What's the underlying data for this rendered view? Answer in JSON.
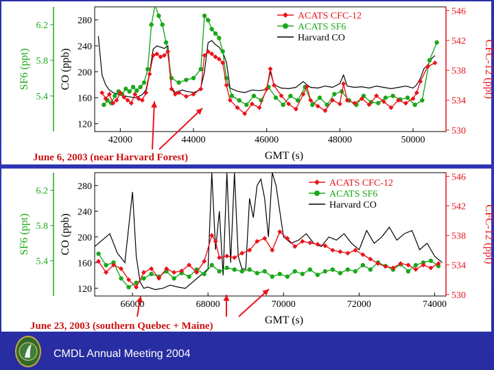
{
  "footer": {
    "text": "CMDL Annual Meeting 2004"
  },
  "colors": {
    "cfc12": "#e8141c",
    "sf6": "#1aa81a",
    "co": "#000000",
    "background": "#2d32b0",
    "panel": "#ffffff"
  },
  "icons": {
    "logo": "cmdl-seal-icon"
  },
  "chart_data": [
    {
      "type": "line",
      "annotation": "June 6, 2003 (near Harvard Forest)",
      "xlabel": "GMT (s)",
      "xlim": [
        41300,
        50900
      ],
      "xticks": [
        42000,
        44000,
        46000,
        48000,
        50000
      ],
      "ylabel_left": "CO (ppb)",
      "ylim_left": [
        108,
        300
      ],
      "yticks_left": [
        120,
        160,
        200,
        240,
        280
      ],
      "ylabel_left2": "SF6 (ppt)",
      "ylim_left2": [
        5.0,
        6.4
      ],
      "yticks_left2": [
        5.4,
        5.8,
        6.2
      ],
      "ylabel_right": "CFC-12 (ppt)",
      "ylim_right": [
        529.8,
        546.5
      ],
      "yticks_right": [
        530,
        534,
        538,
        542,
        546
      ],
      "legend": [
        "ACATS CFC-12",
        "ACATS SF6",
        "Harvard CO"
      ],
      "legend_position": "top-right",
      "series": [
        {
          "name": "Harvard CO",
          "axis": "left",
          "color": "#000000",
          "style": "line",
          "x": [
            41400,
            41500,
            41600,
            41700,
            41800,
            41900,
            42000,
            42100,
            42200,
            42300,
            42400,
            42500,
            42600,
            42700,
            42800,
            42900,
            43000,
            43100,
            43200,
            43300,
            43400,
            43500,
            43600,
            43700,
            43800,
            43900,
            44000,
            44100,
            44200,
            44300,
            44400,
            44500,
            44600,
            44700,
            44800,
            44900,
            45000,
            45200,
            45400,
            45600,
            45800,
            46000,
            46100,
            46200,
            46400,
            46600,
            46800,
            47000,
            47100,
            47200,
            47400,
            47600,
            47800,
            48000,
            48100,
            48200,
            48400,
            48600,
            48800,
            49000,
            49200,
            49400,
            49600,
            49800,
            50000,
            50100,
            50200,
            50300,
            50400,
            50500,
            50600
          ],
          "y": [
            255,
            195,
            180,
            172,
            168,
            166,
            164,
            163,
            162,
            161,
            160,
            162,
            165,
            172,
            198,
            235,
            240,
            238,
            236,
            240,
            175,
            168,
            170,
            172,
            170,
            169,
            168,
            170,
            175,
            200,
            245,
            248,
            242,
            238,
            230,
            215,
            175,
            170,
            168,
            172,
            171,
            173,
            200,
            180,
            175,
            174,
            176,
            185,
            180,
            176,
            175,
            178,
            176,
            182,
            195,
            178,
            176,
            177,
            175,
            178,
            176,
            174,
            176,
            178,
            175,
            180,
            190,
            205,
            210,
            220,
            225
          ]
        },
        {
          "name": "ACATS SF6",
          "axis": "left2",
          "color": "#1aa81a",
          "style": "line+marker",
          "x": [
            41550,
            41650,
            41750,
            41850,
            41950,
            42050,
            42150,
            42250,
            42350,
            42450,
            42550,
            42650,
            42750,
            42850,
            42950,
            43050,
            43150,
            43250,
            43400,
            43600,
            43800,
            44000,
            44200,
            44300,
            44400,
            44500,
            44600,
            44700,
            44800,
            44900,
            45050,
            45250,
            45450,
            45650,
            45850,
            46050,
            46250,
            46450,
            46650,
            46850,
            47050,
            47250,
            47450,
            47650,
            47850,
            48050,
            48250,
            48450,
            48650,
            48850,
            49050,
            49250,
            49450,
            49650,
            49850,
            50050,
            50250,
            50450,
            50650
          ],
          "y": [
            5.3,
            5.35,
            5.32,
            5.4,
            5.45,
            5.42,
            5.48,
            5.45,
            5.5,
            5.46,
            5.5,
            5.55,
            5.7,
            6.2,
            6.42,
            6.3,
            6.2,
            6.0,
            5.6,
            5.55,
            5.58,
            5.6,
            5.7,
            6.3,
            6.25,
            6.15,
            6.1,
            6.05,
            5.9,
            5.6,
            5.4,
            5.35,
            5.3,
            5.4,
            5.35,
            5.5,
            5.38,
            5.3,
            5.4,
            5.35,
            5.5,
            5.3,
            5.38,
            5.3,
            5.42,
            5.45,
            5.35,
            5.3,
            5.4,
            5.33,
            5.32,
            5.38,
            5.4,
            5.36,
            5.38,
            5.3,
            5.35,
            5.8,
            6.0
          ]
        },
        {
          "name": "ACATS CFC-12",
          "axis": "right",
          "color": "#e8141c",
          "style": "line+marker",
          "x": [
            41500,
            41600,
            41700,
            41800,
            41900,
            42000,
            42100,
            42200,
            42300,
            42400,
            42500,
            42600,
            42700,
            42800,
            42900,
            43000,
            43100,
            43200,
            43300,
            43400,
            43500,
            43600,
            43800,
            44000,
            44200,
            44300,
            44400,
            44500,
            44600,
            44700,
            44800,
            44900,
            45000,
            45200,
            45400,
            45600,
            45800,
            46000,
            46100,
            46200,
            46400,
            46600,
            46800,
            47000,
            47100,
            47200,
            47400,
            47600,
            47800,
            48000,
            48100,
            48200,
            48400,
            48600,
            48800,
            49000,
            49200,
            49400,
            49600,
            49800,
            50000,
            50100,
            50200,
            50400,
            50600
          ],
          "y": [
            535.0,
            534.2,
            534.8,
            533.6,
            534.0,
            535.0,
            534.4,
            534.0,
            533.6,
            534.8,
            534.2,
            534.0,
            535.0,
            537.5,
            540.0,
            540.2,
            539.8,
            540.0,
            540.5,
            535.5,
            534.8,
            535.0,
            534.5,
            534.8,
            535.5,
            540.0,
            540.5,
            540.2,
            539.8,
            539.5,
            539.0,
            536.0,
            534.0,
            533.0,
            532.2,
            533.5,
            533.0,
            535.5,
            538.2,
            536.0,
            534.6,
            533.5,
            532.8,
            534.8,
            535.8,
            534.0,
            533.2,
            532.6,
            534.0,
            533.5,
            536.2,
            534.0,
            533.6,
            534.2,
            533.4,
            534.6,
            533.8,
            533.0,
            534.0,
            533.6,
            534.2,
            535.0,
            536.5,
            538.5,
            539.0
          ]
        }
      ]
    },
    {
      "type": "line",
      "annotation": "June 23, 2003 (southern Quebec + Maine)",
      "xlabel": "GMT (s)",
      "xlim": [
        65000,
        74300
      ],
      "xticks": [
        66000,
        68000,
        70000,
        72000,
        74000
      ],
      "ylabel_left": "CO (ppb)",
      "ylim_left": [
        108,
        300
      ],
      "yticks_left": [
        120,
        160,
        200,
        240,
        280
      ],
      "ylabel_left2": "SF6 (ppt)",
      "ylim_left2": [
        5.0,
        6.4
      ],
      "yticks_left2": [
        5.4,
        5.8,
        6.2
      ],
      "ylabel_right": "CFC-12 (ppt)",
      "ylim_right": [
        529.8,
        546.5
      ],
      "yticks_right": [
        530,
        534,
        538,
        542,
        546
      ],
      "legend": [
        "ACATS CFC-12",
        "ACATS SF6",
        "Harvard CO"
      ],
      "legend_position": "top-right",
      "series": [
        {
          "name": "Harvard CO",
          "axis": "left",
          "color": "#000000",
          "style": "line",
          "x": [
            65000,
            65200,
            65400,
            65600,
            65800,
            66000,
            66100,
            66200,
            66300,
            66400,
            66600,
            66800,
            67000,
            67200,
            67400,
            67600,
            67800,
            68000,
            68100,
            68200,
            68300,
            68400,
            68500,
            68600,
            68700,
            68800,
            68900,
            69000,
            69100,
            69200,
            69300,
            69400,
            69500,
            69600,
            69700,
            69800,
            69900,
            70000,
            70200,
            70400,
            70600,
            70800,
            71000,
            71200,
            71400,
            71600,
            71800,
            72000,
            72200,
            72400,
            72600,
            72800,
            73000,
            73200,
            73400,
            73600,
            73800,
            74000,
            74200
          ],
          "y": [
            185,
            195,
            205,
            175,
            160,
            270,
            170,
            130,
            120,
            122,
            118,
            120,
            125,
            122,
            120,
            130,
            140,
            150,
            300,
            180,
            240,
            140,
            300,
            160,
            300,
            170,
            150,
            150,
            260,
            230,
            280,
            290,
            260,
            200,
            300,
            280,
            240,
            200,
            190,
            195,
            205,
            190,
            185,
            200,
            195,
            205,
            190,
            180,
            210,
            190,
            200,
            215,
            195,
            205,
            210,
            180,
            190,
            170,
            160
          ]
        },
        {
          "name": "ACATS SF6",
          "axis": "left2",
          "color": "#1aa81a",
          "style": "line+marker",
          "x": [
            65100,
            65300,
            65500,
            65700,
            65900,
            66100,
            66300,
            66500,
            66700,
            66900,
            67100,
            67300,
            67500,
            67700,
            67900,
            68100,
            68300,
            68500,
            68700,
            68900,
            69100,
            69300,
            69500,
            69700,
            69900,
            70100,
            70300,
            70500,
            70700,
            70900,
            71100,
            71300,
            71500,
            71700,
            71900,
            72100,
            72300,
            72500,
            72700,
            72900,
            73100,
            73300,
            73500,
            73700,
            73900,
            74100
          ],
          "y": [
            5.48,
            5.35,
            5.38,
            5.2,
            5.1,
            5.15,
            5.2,
            5.25,
            5.22,
            5.28,
            5.2,
            5.26,
            5.22,
            5.3,
            5.25,
            5.35,
            5.28,
            5.32,
            5.3,
            5.28,
            5.3,
            5.26,
            5.28,
            5.22,
            5.25,
            5.22,
            5.28,
            5.25,
            5.3,
            5.24,
            5.28,
            5.3,
            5.26,
            5.3,
            5.28,
            5.35,
            5.3,
            5.38,
            5.34,
            5.3,
            5.36,
            5.28,
            5.35,
            5.38,
            5.4,
            5.34
          ]
        },
        {
          "name": "ACATS CFC-12",
          "axis": "right",
          "color": "#e8141c",
          "style": "line+marker",
          "x": [
            65100,
            65300,
            65500,
            65700,
            65900,
            66100,
            66300,
            66500,
            66700,
            66900,
            67100,
            67300,
            67500,
            67700,
            67900,
            68100,
            68200,
            68300,
            68500,
            68700,
            68900,
            69100,
            69300,
            69500,
            69700,
            69900,
            70100,
            70300,
            70500,
            70700,
            70900,
            71100,
            71300,
            71500,
            71700,
            71900,
            72100,
            72300,
            72500,
            72700,
            72900,
            73100,
            73300,
            73500,
            73700,
            73900,
            74100
          ],
          "y": [
            534.5,
            533.0,
            534.0,
            533.5,
            532.0,
            531.0,
            533.0,
            533.5,
            532.2,
            533.5,
            533.0,
            533.2,
            534.0,
            533.0,
            534.5,
            538.0,
            537.2,
            535.0,
            535.2,
            535.0,
            535.6,
            536.0,
            537.2,
            537.6,
            536.0,
            538.5,
            537.6,
            536.5,
            537.2,
            537.0,
            536.8,
            536.6,
            536.0,
            535.8,
            535.6,
            536.0,
            535.4,
            534.8,
            534.2,
            533.8,
            533.6,
            534.2,
            534.0,
            533.4,
            534.0,
            533.6,
            534.2
          ]
        }
      ]
    }
  ]
}
